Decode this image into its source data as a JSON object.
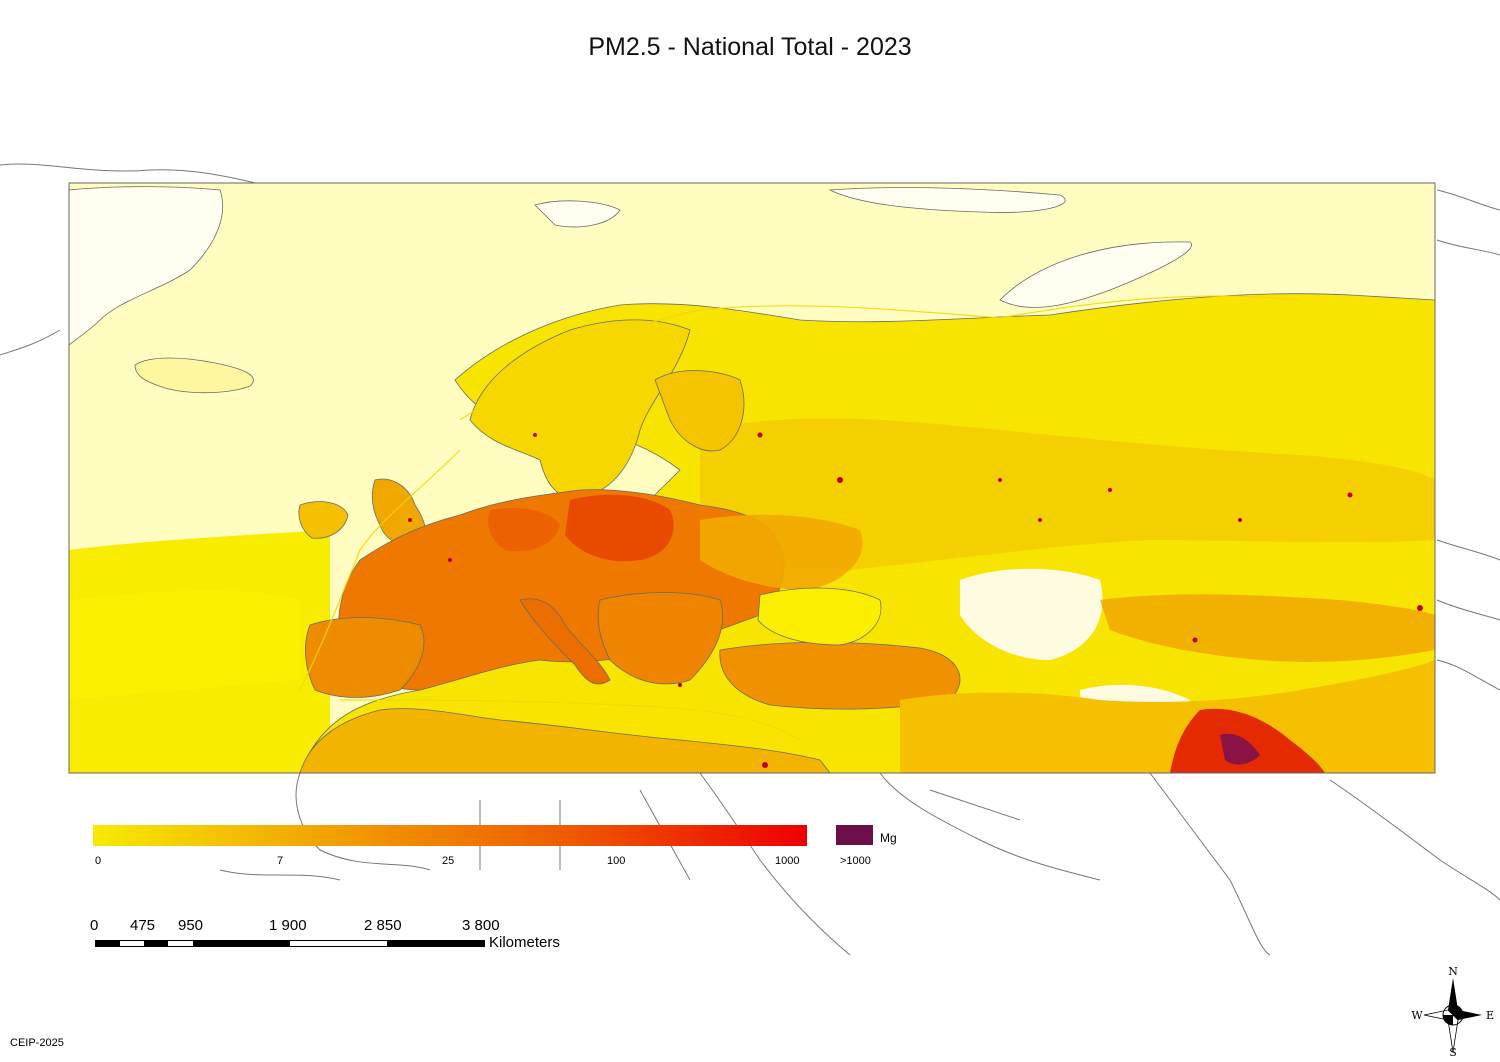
{
  "title": "PM2.5 - National Total - 2023",
  "legend": {
    "unit": "Mg",
    "ticks": [
      "0",
      "7",
      "25",
      "100",
      "1000"
    ],
    "overflow_label": ">1000",
    "gradient_colors": [
      "#f7ea00",
      "#f2a000",
      "#ee5a00",
      "#ee0000"
    ],
    "overflow_color": "#6a0f4a"
  },
  "scale_bar": {
    "labels": [
      "0",
      "475",
      "950",
      "1 900",
      "2 850",
      "3 800"
    ],
    "unit": "Kilometers"
  },
  "compass": {
    "n": "N",
    "s": "S",
    "e": "E",
    "w": "W"
  },
  "credit": "CEIP-2025",
  "colors": {
    "ocean_fill": "#fffdc0",
    "low": "#f8ea00",
    "medium": "#f4b000",
    "high": "#ee6a00",
    "very_high": "#e52600",
    "hotspot": "#c0003a",
    "boundary": "#6b6b6b"
  }
}
